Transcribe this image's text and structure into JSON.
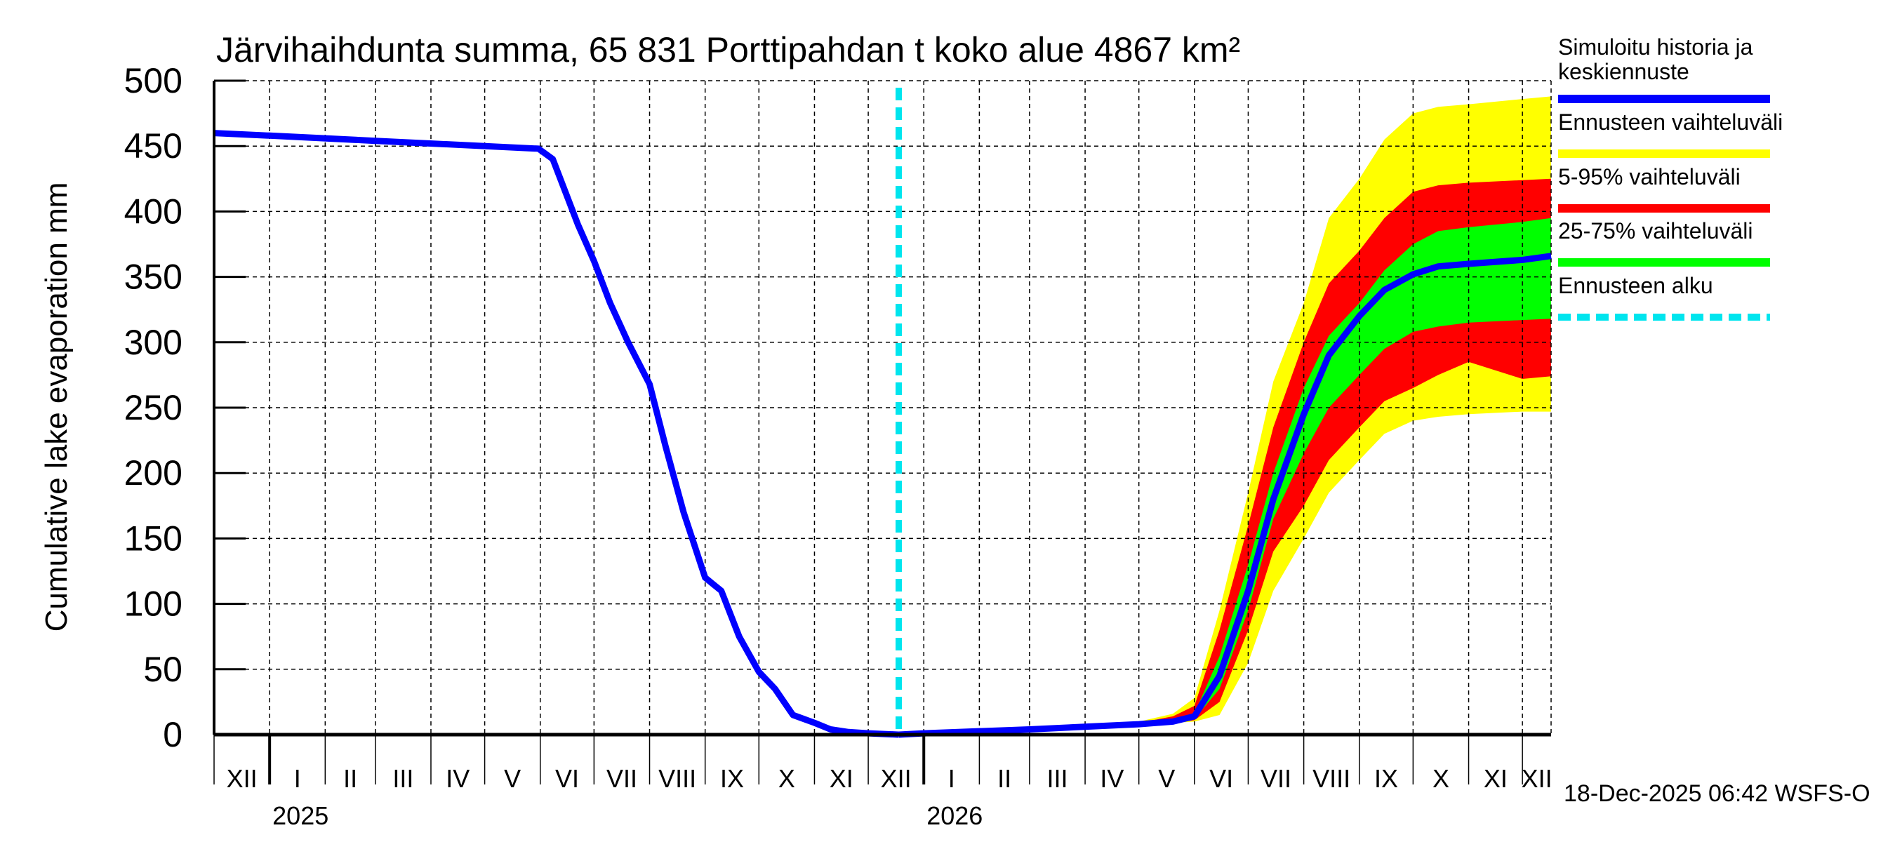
{
  "chart_data": {
    "type": "area",
    "title": "Järvihaihdunta summa, 65 831 Porttipahdan t koko alue 4867 km²",
    "ylabel": "Cumulative lake evaporation   mm",
    "xlabel": "",
    "ylim": [
      0,
      500
    ],
    "yticks": [
      0,
      50,
      100,
      150,
      200,
      250,
      300,
      350,
      400,
      450,
      500
    ],
    "grid": true,
    "x_range": [
      "2024-12-01",
      "2026-12-17"
    ],
    "month_ticks": [
      {
        "date": "2024-12-01",
        "label": "XII"
      },
      {
        "date": "2025-01-01",
        "label": "I"
      },
      {
        "date": "2025-02-01",
        "label": "II"
      },
      {
        "date": "2025-03-01",
        "label": "III"
      },
      {
        "date": "2025-04-01",
        "label": "IV"
      },
      {
        "date": "2025-05-01",
        "label": "V"
      },
      {
        "date": "2025-06-01",
        "label": "VI"
      },
      {
        "date": "2025-07-01",
        "label": "VII"
      },
      {
        "date": "2025-08-01",
        "label": "VIII"
      },
      {
        "date": "2025-09-01",
        "label": "IX"
      },
      {
        "date": "2025-10-01",
        "label": "X"
      },
      {
        "date": "2025-11-01",
        "label": "XI"
      },
      {
        "date": "2025-12-01",
        "label": "XII"
      },
      {
        "date": "2026-01-01",
        "label": "I"
      },
      {
        "date": "2026-02-01",
        "label": "II"
      },
      {
        "date": "2026-03-01",
        "label": "III"
      },
      {
        "date": "2026-04-01",
        "label": "IV"
      },
      {
        "date": "2026-05-01",
        "label": "V"
      },
      {
        "date": "2026-06-01",
        "label": "VI"
      },
      {
        "date": "2026-07-01",
        "label": "VII"
      },
      {
        "date": "2026-08-01",
        "label": "VIII"
      },
      {
        "date": "2026-09-01",
        "label": "IX"
      },
      {
        "date": "2026-10-01",
        "label": "X"
      },
      {
        "date": "2026-11-01",
        "label": "XI"
      },
      {
        "date": "2026-12-01",
        "label": "XII"
      }
    ],
    "year_labels": [
      {
        "date": "2025-01-01",
        "label": "2025"
      },
      {
        "date": "2026-01-01",
        "label": "2026"
      }
    ],
    "forecast_start": "2025-12-18",
    "history": {
      "name": "Simuloitu historia ja keskiennuste",
      "x": [
        "2024-12-01",
        "2025-01-01",
        "2025-03-01",
        "2025-05-31",
        "2025-06-08",
        "2025-06-15",
        "2025-06-22",
        "2025-07-01",
        "2025-07-10",
        "2025-07-20",
        "2025-08-01",
        "2025-08-10",
        "2025-08-20",
        "2025-09-01",
        "2025-09-10",
        "2025-09-20",
        "2025-10-01",
        "2025-10-10",
        "2025-10-20",
        "2025-11-01",
        "2025-11-10",
        "2025-11-20",
        "2025-12-01",
        "2025-12-18"
      ],
      "y": [
        460,
        458,
        454,
        448,
        440,
        415,
        390,
        362,
        330,
        300,
        268,
        220,
        170,
        120,
        110,
        75,
        48,
        35,
        15,
        9,
        4,
        2,
        1,
        0
      ]
    },
    "forecast": {
      "x": [
        "2025-12-18",
        "2026-01-01",
        "2026-03-01",
        "2026-05-01",
        "2026-05-20",
        "2026-06-01",
        "2026-06-15",
        "2026-07-01",
        "2026-07-15",
        "2026-08-01",
        "2026-08-15",
        "2026-09-01",
        "2026-09-15",
        "2026-10-01",
        "2026-10-15",
        "2026-11-01",
        "2026-12-01",
        "2026-12-17"
      ],
      "median": [
        0,
        1,
        4,
        8,
        10,
        14,
        45,
        110,
        180,
        245,
        290,
        320,
        340,
        352,
        358,
        360,
        363,
        366
      ],
      "min": [
        0,
        1,
        4,
        8,
        9,
        10,
        15,
        55,
        110,
        150,
        185,
        210,
        230,
        240,
        243,
        245,
        247,
        247
      ],
      "p5": [
        0,
        1,
        4,
        8,
        9,
        11,
        25,
        80,
        140,
        175,
        210,
        235,
        255,
        265,
        275,
        285,
        272,
        274
      ],
      "p25": [
        0,
        1,
        4,
        8,
        10,
        12,
        35,
        95,
        165,
        215,
        250,
        275,
        295,
        308,
        312,
        315,
        317,
        318
      ],
      "p75": [
        0,
        1,
        4,
        9,
        11,
        16,
        60,
        130,
        200,
        265,
        305,
        330,
        355,
        375,
        385,
        388,
        392,
        395
      ],
      "p95": [
        0,
        1,
        5,
        9,
        14,
        22,
        80,
        160,
        235,
        300,
        345,
        370,
        395,
        415,
        420,
        422,
        424,
        425
      ],
      "max": [
        0,
        2,
        5,
        10,
        16,
        28,
        95,
        185,
        270,
        330,
        395,
        425,
        455,
        475,
        480,
        482,
        486,
        488
      ]
    },
    "legend": [
      {
        "label": "Simuloitu historia ja keskiennuste",
        "color": "#0000ff",
        "style": "line"
      },
      {
        "label": "Ennusteen vaihteluväli",
        "color": "#ffff00",
        "style": "band"
      },
      {
        "label": "5-95% vaihteluväli",
        "color": "#ff0000",
        "style": "band"
      },
      {
        "label": "25-75% vaihteluväli",
        "color": "#00ff00",
        "style": "band"
      },
      {
        "label": "Ennusteen alku",
        "color": "#00e5ee",
        "style": "dashed"
      }
    ],
    "legend_position": "right",
    "colors": {
      "history": "#0000ff",
      "range": "#ffff00",
      "p5_95": "#ff0000",
      "p25_75": "#00ff00",
      "forecast_start": "#00e5ee"
    },
    "footer": "18-Dec-2025 06:42 WSFS-O"
  }
}
